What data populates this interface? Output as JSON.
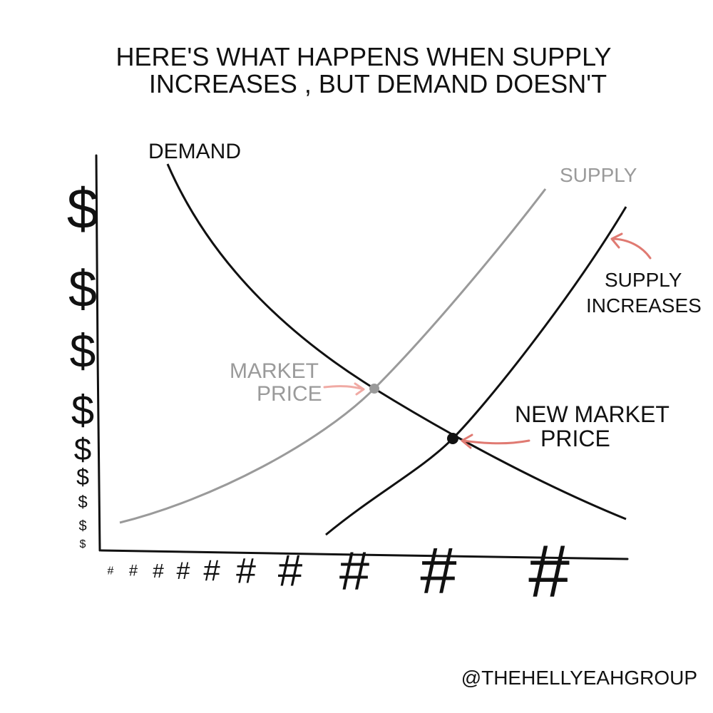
{
  "title": {
    "lines": [
      "HERE'S WHAT HAPPENS WHEN SUPPLY",
      "INCREASES , BUT DEMAND DOESN'T"
    ]
  },
  "labels": {
    "demand": "DEMAND",
    "supply": "SUPPLY",
    "supply_increases": [
      "SUPPLY",
      "INCREASES"
    ],
    "market_price": [
      "MARKET",
      "PRICE"
    ],
    "new_market_price": [
      "NEW MARKET",
      "PRICE"
    ]
  },
  "axes": {
    "y_symbol": "$",
    "x_symbol": "#"
  },
  "footer": "@THEHELLYEAHGROUP"
}
